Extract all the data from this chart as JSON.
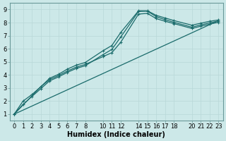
{
  "bg_color": "#cce8e8",
  "line_color": "#1a6b6b",
  "grid_color": "#b8d8d8",
  "xlabel": "Humidex (Indice chaleur)",
  "xlabel_fontsize": 7,
  "tick_fontsize": 6,
  "xlim": [
    -0.5,
    23.5
  ],
  "ylim": [
    0.5,
    9.5
  ],
  "yticks": [
    1,
    2,
    3,
    4,
    5,
    6,
    7,
    8,
    9
  ],
  "xticks": [
    0,
    1,
    2,
    3,
    4,
    5,
    6,
    7,
    8,
    10,
    11,
    12,
    14,
    15,
    16,
    17,
    18,
    20,
    21,
    22,
    23
  ],
  "line1_x": [
    0,
    1,
    2,
    3,
    4,
    5,
    6,
    7,
    8,
    10,
    11,
    12,
    14,
    15,
    16,
    17,
    18,
    20,
    21,
    22,
    23
  ],
  "line1_y": [
    1.0,
    2.0,
    2.5,
    3.1,
    3.75,
    4.05,
    4.45,
    4.75,
    4.95,
    5.85,
    6.25,
    7.25,
    8.9,
    8.9,
    8.55,
    8.35,
    8.15,
    7.8,
    7.95,
    8.1,
    8.2
  ],
  "line2_x": [
    0,
    1,
    2,
    3,
    4,
    5,
    6,
    7,
    8,
    10,
    11,
    12,
    14,
    15,
    16,
    17,
    18,
    20,
    21,
    22,
    23
  ],
  "line2_y": [
    1.0,
    1.75,
    2.35,
    2.95,
    3.55,
    3.85,
    4.2,
    4.5,
    4.7,
    5.55,
    5.95,
    6.9,
    8.85,
    8.87,
    8.45,
    8.22,
    8.02,
    7.65,
    7.82,
    7.98,
    8.12
  ],
  "line3_x": [
    0,
    3,
    4,
    5,
    6,
    7,
    8,
    10,
    11,
    12,
    14,
    15,
    16,
    17,
    18,
    20,
    21,
    22,
    23
  ],
  "line3_y": [
    1.0,
    3.1,
    3.65,
    3.95,
    4.3,
    4.6,
    4.8,
    5.4,
    5.7,
    6.5,
    8.65,
    8.7,
    8.3,
    8.1,
    7.92,
    7.55,
    7.72,
    7.88,
    8.02
  ],
  "line4_x": [
    0,
    23
  ],
  "line4_y": [
    1.0,
    8.15
  ]
}
